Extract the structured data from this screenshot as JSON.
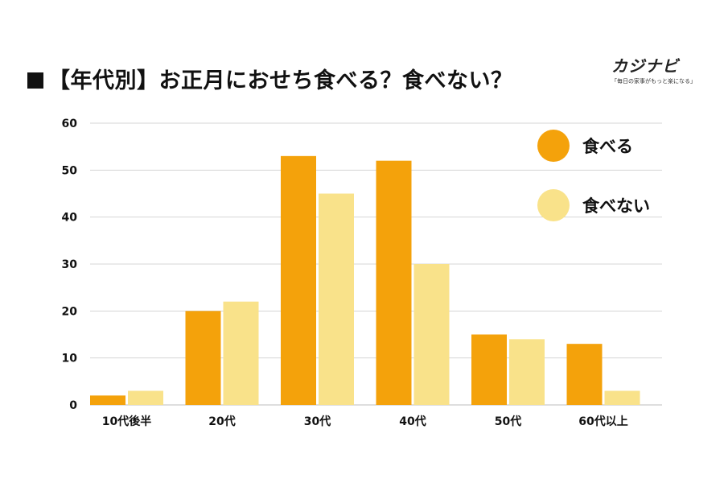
{
  "title": "【年代別】お正月におせち食べる？食べない？",
  "brand": {
    "name": "カジナビ",
    "tagline": "「毎日の家事がもっと楽になる」"
  },
  "colors": {
    "eat": "#F4A20B",
    "not_eat": "#F9E28A",
    "grid": "#d4d4d4",
    "text": "#111111"
  },
  "legend": [
    {
      "label": "食べる",
      "color": "#F4A20B"
    },
    {
      "label": "食べない",
      "color": "#F9E28A"
    }
  ],
  "chart_data": {
    "type": "bar",
    "categories": [
      "10代後半",
      "20代",
      "30代",
      "40代",
      "50代",
      "60代以上"
    ],
    "series": [
      {
        "name": "食べる",
        "values": [
          2,
          20,
          53,
          52,
          15,
          13
        ]
      },
      {
        "name": "食べない",
        "values": [
          3,
          22,
          45,
          30,
          14,
          3
        ]
      }
    ],
    "ylim": [
      0,
      60
    ],
    "yticks": [
      0,
      10,
      20,
      30,
      40,
      50,
      60
    ],
    "grid": true,
    "legend_position": "top-right",
    "xlabel": "",
    "ylabel": ""
  }
}
